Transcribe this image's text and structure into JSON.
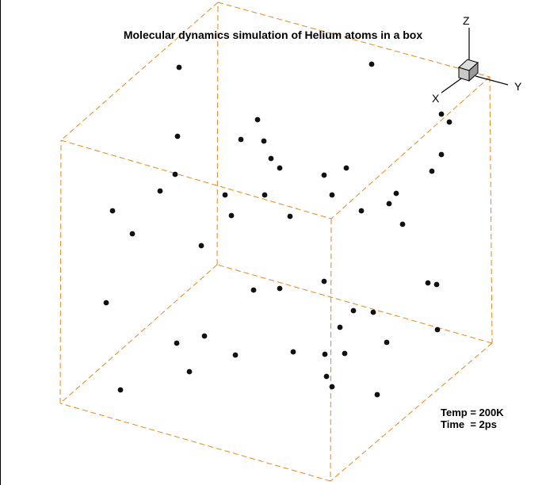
{
  "title": "Molecular dynamics simulation of Helium atoms in a box",
  "info": {
    "temp": "Temp = 200K",
    "time": "Time  = 2ps"
  },
  "axes": {
    "x": "X",
    "y": "Y",
    "z": "Z"
  },
  "colors": {
    "box": "#e8861a",
    "atom": "#111111",
    "cube_front": "#c8c8c8",
    "cube_top": "#dcdcdc",
    "cube_side": "#9a9a9a"
  },
  "chart_data": {
    "type": "scatter",
    "title": "Molecular dynamics simulation of Helium atoms in a box",
    "xlabel": "",
    "ylabel": "",
    "grid": false,
    "legend": "none",
    "series": [
      {
        "points": [
          [
            226,
            85
          ],
          [
            469,
            81
          ],
          [
            325,
            151
          ],
          [
            224,
            172
          ],
          [
            304,
            176
          ],
          [
            333,
            178
          ],
          [
            557,
            144
          ],
          [
            567,
            154
          ],
          [
            342,
            200
          ],
          [
            353,
            212
          ],
          [
            557,
            195
          ],
          [
            545,
            216
          ],
          [
            221,
            220
          ],
          [
            409,
            221
          ],
          [
            437,
            212
          ],
          [
            202,
            241
          ],
          [
            284,
            246
          ],
          [
            334,
            246
          ],
          [
            419,
            246
          ],
          [
            500,
            244
          ],
          [
            142,
            266
          ],
          [
            292,
            272
          ],
          [
            366,
            273
          ],
          [
            456,
            266
          ],
          [
            491,
            257
          ],
          [
            508,
            283
          ],
          [
            167,
            295
          ],
          [
            254,
            310
          ],
          [
            409,
            355
          ],
          [
            540,
            357
          ],
          [
            551,
            359
          ],
          [
            353,
            364
          ],
          [
            320,
            366
          ],
          [
            134,
            382
          ],
          [
            446,
            392
          ],
          [
            471,
            394
          ],
          [
            429,
            413
          ],
          [
            552,
            416
          ],
          [
            258,
            424
          ],
          [
            223,
            433
          ],
          [
            488,
            432
          ],
          [
            297,
            448
          ],
          [
            370,
            444
          ],
          [
            410,
            447
          ],
          [
            435,
            446
          ],
          [
            239,
            469
          ],
          [
            412,
            475
          ],
          [
            419,
            488
          ],
          [
            152,
            492
          ],
          [
            476,
            498
          ]
        ]
      }
    ]
  }
}
